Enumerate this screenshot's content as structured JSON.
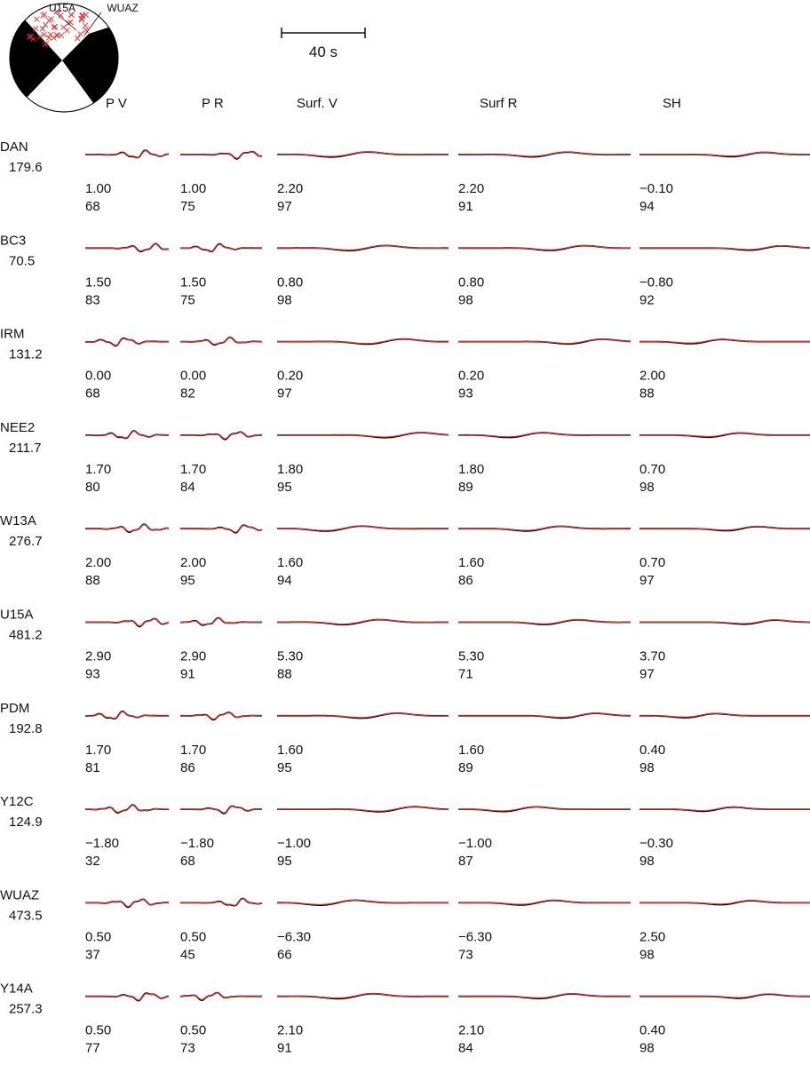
{
  "colors": {
    "observed": "#000000",
    "synthetic": "#e8322e",
    "background": "#ffffff"
  },
  "mechanism": {
    "station_labels": [
      "U15A",
      "WUAZ"
    ]
  },
  "scale_bar": {
    "label": "40 s"
  },
  "columns": [
    "P V",
    "P R",
    "Surf. V",
    "Surf R",
    "SH"
  ],
  "stations": [
    {
      "name": "DAN",
      "distance": "179.6",
      "shifts": [
        "1.00",
        "1.00",
        "2.20",
        "2.20",
        "−0.10"
      ],
      "cc": [
        "68",
        "75",
        "97",
        "91",
        "94"
      ]
    },
    {
      "name": "BC3",
      "distance": "70.5",
      "shifts": [
        "1.50",
        "1.50",
        "0.80",
        "0.80",
        "−0.80"
      ],
      "cc": [
        "83",
        "75",
        "98",
        "98",
        "92"
      ]
    },
    {
      "name": "IRM",
      "distance": "131.2",
      "shifts": [
        "0.00",
        "0.00",
        "0.20",
        "0.20",
        "2.00"
      ],
      "cc": [
        "68",
        "82",
        "97",
        "93",
        "88"
      ]
    },
    {
      "name": "NEE2",
      "distance": "211.7",
      "shifts": [
        "1.70",
        "1.70",
        "1.80",
        "1.80",
        "0.70"
      ],
      "cc": [
        "80",
        "84",
        "95",
        "89",
        "98"
      ]
    },
    {
      "name": "W13A",
      "distance": "276.7",
      "shifts": [
        "2.00",
        "2.00",
        "1.60",
        "1.60",
        "0.70"
      ],
      "cc": [
        "88",
        "95",
        "94",
        "86",
        "97"
      ]
    },
    {
      "name": "U15A",
      "distance": "481.2",
      "shifts": [
        "2.90",
        "2.90",
        "5.30",
        "5.30",
        "3.70"
      ],
      "cc": [
        "93",
        "91",
        "88",
        "71",
        "97"
      ]
    },
    {
      "name": "PDM",
      "distance": "192.8",
      "shifts": [
        "1.70",
        "1.70",
        "1.60",
        "1.60",
        "0.40"
      ],
      "cc": [
        "81",
        "86",
        "95",
        "89",
        "98"
      ]
    },
    {
      "name": "Y12C",
      "distance": "124.9",
      "shifts": [
        "−1.80",
        "−1.80",
        "−1.00",
        "−1.00",
        "−0.30"
      ],
      "cc": [
        "32",
        "68",
        "95",
        "87",
        "98"
      ]
    },
    {
      "name": "WUAZ",
      "distance": "473.5",
      "shifts": [
        "0.50",
        "0.50",
        "−6.30",
        "−6.30",
        "2.50"
      ],
      "cc": [
        "37",
        "45",
        "66",
        "73",
        "98"
      ]
    },
    {
      "name": "Y14A",
      "distance": "257.3",
      "shifts": [
        "0.50",
        "0.50",
        "2.10",
        "2.10",
        "0.40"
      ],
      "cc": [
        "77",
        "73",
        "91",
        "84",
        "98"
      ]
    }
  ]
}
